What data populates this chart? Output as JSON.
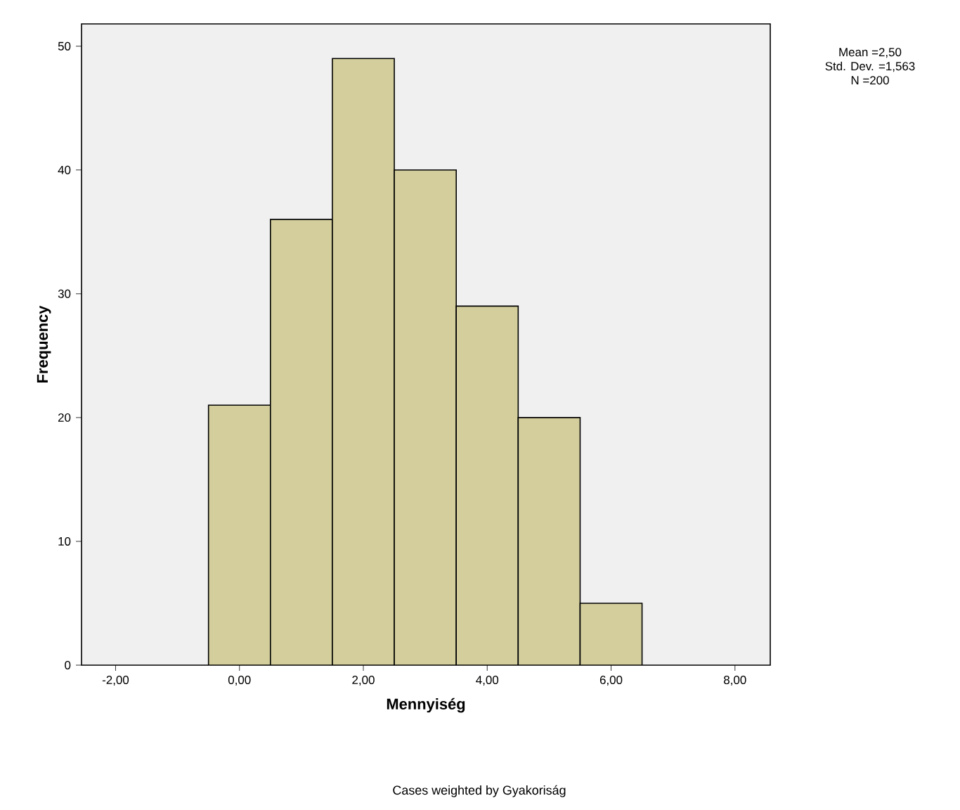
{
  "chart_data": {
    "type": "histogram",
    "xlabel": "Mennyiség",
    "ylabel": "Frequency",
    "bins": [
      -0.5,
      0.5,
      1.5,
      2.5,
      3.5,
      4.5,
      5.5,
      6.5
    ],
    "values": [
      21,
      36,
      49,
      40,
      29,
      20,
      5
    ],
    "color": "#d3ce9c",
    "xlim": [
      -2.55,
      8.57
    ],
    "xticks": [
      {
        "value": -2,
        "label": "-2,00"
      },
      {
        "value": 0,
        "label": "0,00"
      },
      {
        "value": 2,
        "label": "2,00"
      },
      {
        "value": 4,
        "label": "4,00"
      },
      {
        "value": 6,
        "label": "6,00"
      },
      {
        "value": 8,
        "label": "8,00"
      }
    ],
    "ylim": [
      0,
      51.8
    ],
    "yticks": [
      0,
      10,
      20,
      30,
      40,
      50
    ],
    "grid": false,
    "annotations": [
      "Mean =2,50",
      "Std. Dev. =1,563",
      "N =200",
      "Cases weighted by Gyakoriság"
    ]
  }
}
